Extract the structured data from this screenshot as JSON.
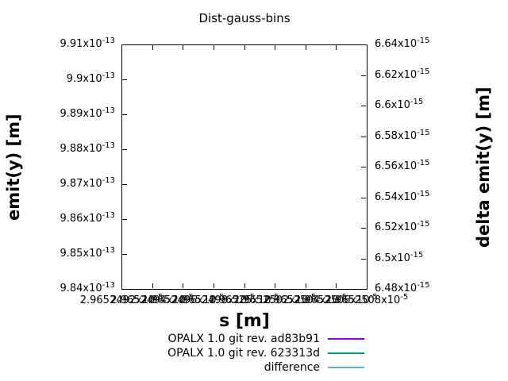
{
  "title": "Dist-gauss-bins",
  "chart_data": {
    "type": "line",
    "title": "Dist-gauss-bins",
    "xlabel": "s [m]",
    "ylabel_left": "emit(y) [m]",
    "ylabel_right": "delta emit(y) [m]",
    "grid": false,
    "legend_position": "below-plot-right-aligned",
    "x_tick_labels": [
      "2.9652492x10^-5",
      "2.9652494x10^-5",
      "2.9652496x10^-5",
      "2.9652498x10^-5",
      "2.96525x10^-5",
      "2.9652502x10^-5",
      "2.9652504x10^-5",
      "2.9652506x10^-5",
      "2.9652508x10^-5"
    ],
    "y_left_tick_labels": [
      "9.91x10^-13",
      "9.9x10^-13",
      "9.89x10^-13",
      "9.88x10^-13",
      "9.87x10^-13",
      "9.86x10^-13",
      "9.85x10^-13",
      "9.84x10^-13"
    ],
    "y_right_tick_labels": [
      "6.64x10^-15",
      "6.62x10^-15",
      "6.6x10^-15",
      "6.58x10^-15",
      "6.56x10^-15",
      "6.54x10^-15",
      "6.52x10^-15",
      "6.5x10^-15",
      "6.48x10^-15"
    ],
    "ylim_left": [
      "9.84x10^-13",
      "9.91x10^-13"
    ],
    "ylim_right": [
      "6.48x10^-15",
      "6.64x10^-15"
    ],
    "xlim": [
      "2.9652492x10^-5",
      "2.9652508x10^-5"
    ],
    "series": [
      {
        "name": "OPALX 1.0 git rev. ad83b91",
        "color": "#9400d3",
        "values": []
      },
      {
        "name": "OPALX 1.0 git rev. 623313d",
        "color": "#009e73",
        "values": []
      },
      {
        "name": "difference",
        "color": "#56b4e9",
        "values": []
      }
    ]
  }
}
